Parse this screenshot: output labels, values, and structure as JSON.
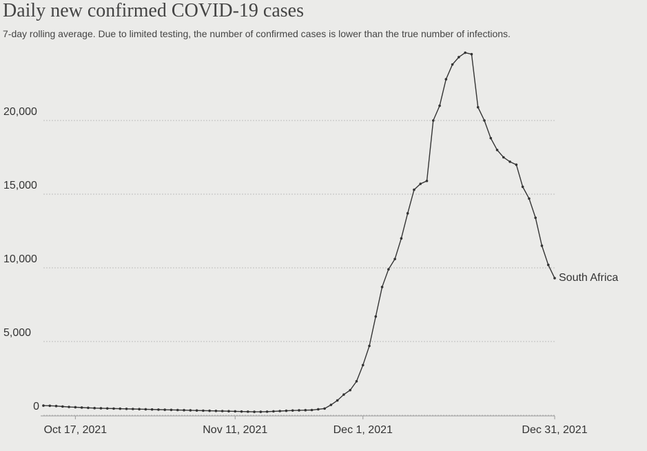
{
  "chart_data": {
    "type": "line",
    "title": "Daily new confirmed COVID-19 cases",
    "subtitle": "7-day rolling average. Due to limited testing, the number of confirmed cases is lower than the true number of infections.",
    "x": [
      "2021-10-12",
      "2021-10-13",
      "2021-10-14",
      "2021-10-15",
      "2021-10-16",
      "2021-10-17",
      "2021-10-18",
      "2021-10-19",
      "2021-10-20",
      "2021-10-21",
      "2021-10-22",
      "2021-10-23",
      "2021-10-24",
      "2021-10-25",
      "2021-10-26",
      "2021-10-27",
      "2021-10-28",
      "2021-10-29",
      "2021-10-30",
      "2021-10-31",
      "2021-11-01",
      "2021-11-02",
      "2021-11-03",
      "2021-11-04",
      "2021-11-05",
      "2021-11-06",
      "2021-11-07",
      "2021-11-08",
      "2021-11-09",
      "2021-11-10",
      "2021-11-11",
      "2021-11-12",
      "2021-11-13",
      "2021-11-14",
      "2021-11-15",
      "2021-11-16",
      "2021-11-17",
      "2021-11-18",
      "2021-11-19",
      "2021-11-20",
      "2021-11-21",
      "2021-11-22",
      "2021-11-23",
      "2021-11-24",
      "2021-11-25",
      "2021-11-26",
      "2021-11-27",
      "2021-11-28",
      "2021-11-29",
      "2021-11-30",
      "2021-12-01",
      "2021-12-02",
      "2021-12-03",
      "2021-12-04",
      "2021-12-05",
      "2021-12-06",
      "2021-12-07",
      "2021-12-08",
      "2021-12-09",
      "2021-12-10",
      "2021-12-11",
      "2021-12-12",
      "2021-12-13",
      "2021-12-14",
      "2021-12-15",
      "2021-12-16",
      "2021-12-17",
      "2021-12-18",
      "2021-12-19",
      "2021-12-20",
      "2021-12-21",
      "2021-12-22",
      "2021-12-23",
      "2021-12-24",
      "2021-12-25",
      "2021-12-26",
      "2021-12-27",
      "2021-12-28",
      "2021-12-29",
      "2021-12-30",
      "2021-12-31"
    ],
    "series": [
      {
        "name": "South Africa",
        "color": "#333333",
        "values": [
          650,
          640,
          620,
          590,
          560,
          540,
          520,
          500,
          480,
          470,
          460,
          450,
          440,
          430,
          420,
          410,
          400,
          390,
          380,
          370,
          360,
          350,
          340,
          330,
          320,
          310,
          300,
          290,
          280,
          270,
          260,
          250,
          240,
          230,
          230,
          240,
          260,
          280,
          300,
          320,
          330,
          340,
          350,
          400,
          450,
          700,
          1000,
          1400,
          1700,
          2300,
          3400,
          4700,
          6700,
          8700,
          9900,
          10600,
          12000,
          13700,
          15300,
          15700,
          15900,
          20000,
          21000,
          22800,
          23800,
          24300,
          24600,
          24500,
          20900,
          20000,
          18800,
          18000,
          17500,
          17200,
          17000,
          15500,
          14700,
          13400,
          11500,
          10200,
          9300
        ]
      }
    ],
    "xlim": [
      "2021-10-12",
      "2021-12-31"
    ],
    "xticks": [
      {
        "value": "2021-10-17",
        "label": "Oct 17, 2021"
      },
      {
        "value": "2021-11-11",
        "label": "Nov 11, 2021"
      },
      {
        "value": "2021-12-01",
        "label": "Dec 1, 2021"
      },
      {
        "value": "2021-12-31",
        "label": "Dec 31, 2021"
      }
    ],
    "ylim": [
      0,
      25000
    ],
    "yticks": [
      0,
      {
        "value": 5000,
        "label": "5,000"
      },
      {
        "value": 10000,
        "label": "10,000"
      },
      {
        "value": 15000,
        "label": "15,000"
      },
      {
        "value": 20000,
        "label": "20,000"
      }
    ],
    "grid": true
  }
}
